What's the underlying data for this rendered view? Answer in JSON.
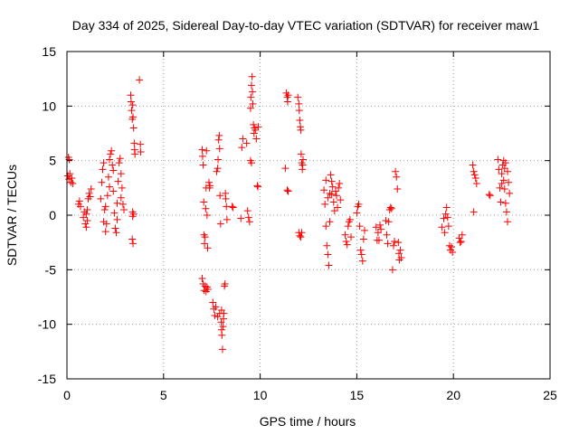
{
  "chart_data": {
    "type": "scatter",
    "title": "Day 334 of 2025, Sidereal Day-to-day VTEC variation (SDTVAR) for receiver maw1",
    "xlabel": "GPS time / hours",
    "ylabel": "SDTVAR / TECUs",
    "xlim": [
      0,
      25
    ],
    "ylim": [
      -15,
      15
    ],
    "xticks": [
      0,
      5,
      10,
      15,
      20,
      25
    ],
    "yticks": [
      -15,
      -10,
      -5,
      0,
      5,
      10,
      15
    ],
    "xtick_labels": [
      "0",
      "5",
      "10",
      "15",
      "20",
      "25"
    ],
    "ytick_labels": [
      "-15",
      "-10",
      "-5",
      "0",
      "5",
      "10",
      "15"
    ],
    "grid": true,
    "marker": "plus",
    "series": [
      {
        "name": "SDTVAR",
        "color": "#ff0000",
        "points": [
          [
            0.05,
            3.6
          ],
          [
            0.08,
            5.3
          ],
          [
            0.1,
            3.3
          ],
          [
            0.12,
            5.1
          ],
          [
            0.15,
            3.8
          ],
          [
            0.2,
            3.0
          ],
          [
            0.25,
            3.4
          ],
          [
            0.3,
            2.9
          ],
          [
            0.6,
            1.0
          ],
          [
            0.65,
            1.3
          ],
          [
            0.7,
            0.8
          ],
          [
            0.85,
            -0.2
          ],
          [
            0.9,
            0.3
          ],
          [
            0.95,
            -0.8
          ],
          [
            1.0,
            -1.1
          ],
          [
            1.05,
            0.5
          ],
          [
            1.1,
            1.5
          ],
          [
            1.15,
            2.0
          ],
          [
            1.2,
            1.7
          ],
          [
            1.25,
            2.4
          ],
          [
            1.05,
            -0.5
          ],
          [
            1.0,
            0.1
          ],
          [
            1.75,
            1.5
          ],
          [
            1.8,
            3.0
          ],
          [
            1.85,
            4.2
          ],
          [
            1.9,
            4.8
          ],
          [
            1.95,
            0.5
          ],
          [
            2.0,
            -1.5
          ],
          [
            2.05,
            -0.8
          ],
          [
            2.1,
            1.8
          ],
          [
            2.15,
            3.5
          ],
          [
            2.2,
            5.1
          ],
          [
            2.25,
            5.6
          ],
          [
            2.3,
            5.9
          ],
          [
            2.35,
            4.6
          ],
          [
            2.4,
            2.2
          ],
          [
            2.45,
            0.2
          ],
          [
            2.5,
            -1.2
          ],
          [
            2.55,
            -1.6
          ],
          [
            2.6,
            1.1
          ],
          [
            2.65,
            3.1
          ],
          [
            2.7,
            4.8
          ],
          [
            2.75,
            5.2
          ],
          [
            2.8,
            3.8
          ],
          [
            2.85,
            2.5
          ],
          [
            2.9,
            1.0
          ],
          [
            2.95,
            0.5
          ],
          [
            1.9,
            -0.6
          ],
          [
            2.0,
            0.8
          ],
          [
            2.2,
            2.6
          ],
          [
            2.4,
            4.1
          ],
          [
            2.6,
            -0.4
          ],
          [
            2.8,
            1.6
          ],
          [
            3.3,
            11.0
          ],
          [
            3.32,
            10.4
          ],
          [
            3.35,
            9.6
          ],
          [
            3.38,
            8.8
          ],
          [
            3.4,
            10.1
          ],
          [
            3.42,
            9.0
          ],
          [
            3.45,
            8.0
          ],
          [
            3.48,
            6.6
          ],
          [
            3.5,
            6.0
          ],
          [
            3.52,
            5.6
          ],
          [
            3.4,
            0.3
          ],
          [
            3.45,
            0.1
          ],
          [
            3.38,
            -2.2
          ],
          [
            3.42,
            -2.6
          ],
          [
            3.4,
            -0.1
          ],
          [
            3.75,
            12.4
          ],
          [
            3.8,
            6.5
          ],
          [
            3.82,
            5.8
          ],
          [
            7.0,
            6.0
          ],
          [
            7.02,
            5.4
          ],
          [
            7.05,
            4.6
          ],
          [
            7.08,
            1.2
          ],
          [
            7.1,
            -1.8
          ],
          [
            7.12,
            -2.6
          ],
          [
            7.15,
            -2.0
          ],
          [
            7.18,
            0.6
          ],
          [
            7.2,
            2.5
          ],
          [
            7.22,
            5.9
          ],
          [
            7.25,
            0.0
          ],
          [
            7.28,
            -3.0
          ],
          [
            7.0,
            -5.8
          ],
          [
            7.05,
            -6.3
          ],
          [
            7.1,
            -6.9
          ],
          [
            7.15,
            -6.5
          ],
          [
            7.2,
            -7.0
          ],
          [
            7.25,
            -6.6
          ],
          [
            7.3,
            -6.8
          ],
          [
            7.35,
            3.0
          ],
          [
            7.38,
            2.5
          ],
          [
            7.4,
            2.7
          ],
          [
            7.55,
            -8.0
          ],
          [
            7.6,
            -8.6
          ],
          [
            7.65,
            -9.2
          ],
          [
            7.7,
            -8.4
          ],
          [
            7.75,
            4.0
          ],
          [
            7.8,
            4.3
          ],
          [
            7.82,
            5.1
          ],
          [
            7.85,
            6.9
          ],
          [
            7.88,
            7.3
          ],
          [
            7.9,
            6.1
          ],
          [
            7.92,
            1.8
          ],
          [
            7.95,
            -0.8
          ],
          [
            7.98,
            -9.8
          ],
          [
            8.0,
            -10.5
          ],
          [
            8.02,
            -11.0
          ],
          [
            8.05,
            -12.3
          ],
          [
            8.08,
            -10.2
          ],
          [
            8.1,
            -9.5
          ],
          [
            8.12,
            -9.0
          ],
          [
            8.15,
            -6.5
          ],
          [
            8.18,
            -6.3
          ],
          [
            8.2,
            2.0
          ],
          [
            8.22,
            1.5
          ],
          [
            8.25,
            0.8
          ],
          [
            8.28,
            -0.4
          ],
          [
            7.8,
            -9.3
          ],
          [
            7.9,
            -9.0
          ],
          [
            8.0,
            -8.7
          ],
          [
            8.55,
            0.8
          ],
          [
            8.6,
            0.7
          ],
          [
            9.0,
            -0.3
          ],
          [
            9.05,
            6.2
          ],
          [
            9.1,
            7.0
          ],
          [
            9.3,
            6.6
          ],
          [
            9.35,
            0.4
          ],
          [
            9.4,
            -0.2
          ],
          [
            9.45,
            -0.6
          ],
          [
            9.5,
            9.8
          ],
          [
            9.52,
            10.8
          ],
          [
            9.55,
            11.9
          ],
          [
            9.58,
            12.7
          ],
          [
            9.6,
            11.3
          ],
          [
            9.62,
            10.2
          ],
          [
            9.65,
            8.3
          ],
          [
            9.68,
            7.5
          ],
          [
            9.5,
            5.0
          ],
          [
            9.55,
            4.8
          ],
          [
            9.7,
            8.0
          ],
          [
            9.75,
            7.8
          ],
          [
            9.8,
            7.0
          ],
          [
            9.85,
            2.7
          ],
          [
            9.88,
            2.6
          ],
          [
            9.9,
            8.1
          ],
          [
            11.3,
            4.3
          ],
          [
            11.35,
            11.2
          ],
          [
            11.4,
            10.8
          ],
          [
            11.42,
            10.4
          ],
          [
            11.45,
            11.0
          ],
          [
            11.4,
            2.3
          ],
          [
            11.45,
            2.2
          ],
          [
            11.95,
            10.8
          ],
          [
            12.0,
            10.2
          ],
          [
            12.02,
            9.6
          ],
          [
            12.05,
            8.7
          ],
          [
            12.08,
            8.1
          ],
          [
            12.1,
            7.8
          ],
          [
            12.12,
            5.6
          ],
          [
            12.15,
            4.8
          ],
          [
            12.18,
            4.2
          ],
          [
            12.2,
            4.6
          ],
          [
            12.22,
            5.1
          ],
          [
            12.0,
            -1.6
          ],
          [
            12.05,
            -1.9
          ],
          [
            12.1,
            -2.0
          ],
          [
            12.15,
            -1.6
          ],
          [
            13.3,
            2.3
          ],
          [
            13.35,
            1.0
          ],
          [
            13.4,
            -1.0
          ],
          [
            13.45,
            -2.8
          ],
          [
            13.5,
            -3.6
          ],
          [
            13.55,
            -4.6
          ],
          [
            13.6,
            2.0
          ],
          [
            13.65,
            3.7
          ],
          [
            13.7,
            3.1
          ],
          [
            13.75,
            2.6
          ],
          [
            13.8,
            1.2
          ],
          [
            13.85,
            0.4
          ],
          [
            13.9,
            2.2
          ],
          [
            13.95,
            1.8
          ],
          [
            14.0,
            0.7
          ],
          [
            14.05,
            2.5
          ],
          [
            14.1,
            2.9
          ],
          [
            14.15,
            1.4
          ],
          [
            13.5,
            1.6
          ],
          [
            13.6,
            -0.6
          ],
          [
            13.4,
            3.2
          ],
          [
            13.7,
            1.9
          ],
          [
            14.4,
            -1.8
          ],
          [
            14.45,
            -2.4
          ],
          [
            14.5,
            -2.7
          ],
          [
            14.55,
            -1.0
          ],
          [
            14.6,
            -0.6
          ],
          [
            14.65,
            -0.4
          ],
          [
            14.7,
            -2.0
          ],
          [
            15.0,
            0.2
          ],
          [
            15.05,
            0.8
          ],
          [
            15.1,
            1.0
          ],
          [
            15.15,
            -1.0
          ],
          [
            15.2,
            -3.2
          ],
          [
            15.25,
            -3.6
          ],
          [
            15.3,
            -4.2
          ],
          [
            15.35,
            -2.2
          ],
          [
            15.4,
            -1.4
          ],
          [
            16.0,
            -1.1
          ],
          [
            16.05,
            -2.3
          ],
          [
            16.1,
            -1.6
          ],
          [
            16.15,
            -2.3
          ],
          [
            16.2,
            -0.9
          ],
          [
            16.25,
            -1.3
          ],
          [
            16.5,
            -0.5
          ],
          [
            16.55,
            -1.8
          ],
          [
            16.6,
            -2.6
          ],
          [
            16.65,
            -0.6
          ],
          [
            16.7,
            0.5
          ],
          [
            16.75,
            0.7
          ],
          [
            16.8,
            0.6
          ],
          [
            16.85,
            -5.0
          ],
          [
            16.9,
            -2.8
          ],
          [
            16.95,
            -2.4
          ],
          [
            17.0,
            4.0
          ],
          [
            17.05,
            3.5
          ],
          [
            17.1,
            2.4
          ],
          [
            17.15,
            -2.5
          ],
          [
            17.18,
            -3.5
          ],
          [
            17.2,
            -4.1
          ],
          [
            17.25,
            -3.2
          ],
          [
            17.3,
            -3.9
          ],
          [
            19.4,
            -1.1
          ],
          [
            19.5,
            -0.3
          ],
          [
            19.55,
            -1.6
          ],
          [
            19.6,
            0.1
          ],
          [
            19.65,
            0.7
          ],
          [
            19.7,
            -0.2
          ],
          [
            19.75,
            -1.0
          ],
          [
            19.8,
            -2.8
          ],
          [
            19.85,
            -3.2
          ],
          [
            19.9,
            -2.9
          ],
          [
            19.95,
            -3.4
          ],
          [
            20.3,
            -2.1
          ],
          [
            20.35,
            -2.5
          ],
          [
            20.4,
            -2.4
          ],
          [
            20.45,
            -1.8
          ],
          [
            21.0,
            4.6
          ],
          [
            21.05,
            4.0
          ],
          [
            21.1,
            3.7
          ],
          [
            21.15,
            3.4
          ],
          [
            21.2,
            2.9
          ],
          [
            21.05,
            0.3
          ],
          [
            21.85,
            1.9
          ],
          [
            21.9,
            1.8
          ],
          [
            22.3,
            5.1
          ],
          [
            22.35,
            4.2
          ],
          [
            22.4,
            2.5
          ],
          [
            22.45,
            1.2
          ],
          [
            22.5,
            3.8
          ],
          [
            22.55,
            4.6
          ],
          [
            22.6,
            3.2
          ],
          [
            22.65,
            2.4
          ],
          [
            22.7,
            1.1
          ],
          [
            22.75,
            0.3
          ],
          [
            22.8,
            4.0
          ],
          [
            22.85,
            3.0
          ],
          [
            22.9,
            2.0
          ],
          [
            22.6,
            5.0
          ],
          [
            22.7,
            4.8
          ],
          [
            22.8,
            -0.6
          ],
          [
            22.5,
            2.9
          ],
          [
            22.65,
            4.3
          ]
        ]
      }
    ]
  }
}
